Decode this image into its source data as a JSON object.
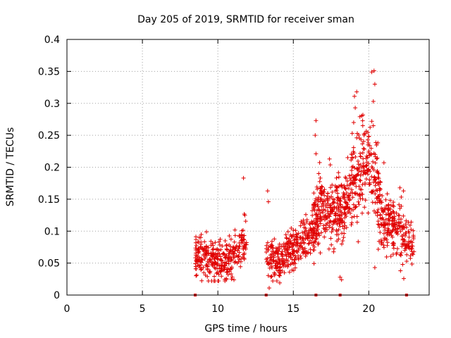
{
  "chart_data": {
    "type": "scatter",
    "title": "Day 205 of 2019, SRMTID for receiver sman",
    "xlabel": "GPS time / hours",
    "ylabel": "SRMTID / TECUs",
    "xlim": [
      0,
      24
    ],
    "ylim": [
      0,
      0.4
    ],
    "xticks": [
      "0",
      "5",
      "10",
      "15",
      "20"
    ],
    "xtick_values": [
      0,
      5,
      10,
      15,
      20
    ],
    "yticks": [
      "0",
      "0.05",
      "0.1",
      "0.15",
      "0.2",
      "0.25",
      "0.3",
      "0.35",
      "0.4"
    ],
    "ytick_values": [
      0,
      0.05,
      0.1,
      0.15,
      0.2,
      0.25,
      0.3,
      0.35,
      0.4
    ],
    "grid": true,
    "marker": "+",
    "color": "#e00000",
    "baseline_markers": [
      8.5,
      13.2,
      16.5,
      18.1,
      22.5
    ],
    "segments": [
      {
        "x_start": 8.5,
        "x_end": 11.9,
        "count": 320,
        "profile": [
          [
            8.5,
            0.065
          ],
          [
            9.5,
            0.058
          ],
          [
            10.5,
            0.05
          ],
          [
            11.2,
            0.07
          ],
          [
            11.9,
            0.085
          ]
        ],
        "spread": 0.022
      },
      {
        "x_start": 13.2,
        "x_end": 16.3,
        "count": 300,
        "profile": [
          [
            13.2,
            0.06
          ],
          [
            14.0,
            0.052
          ],
          [
            15.0,
            0.075
          ],
          [
            15.8,
            0.085
          ],
          [
            16.3,
            0.1
          ]
        ],
        "spread": 0.022
      },
      {
        "x_start": 16.3,
        "x_end": 18.2,
        "count": 260,
        "profile": [
          [
            16.3,
            0.11
          ],
          [
            17.0,
            0.14
          ],
          [
            17.6,
            0.13
          ],
          [
            18.2,
            0.12
          ]
        ],
        "spread": 0.035
      },
      {
        "x_start": 18.2,
        "x_end": 20.8,
        "count": 300,
        "profile": [
          [
            18.2,
            0.12
          ],
          [
            19.0,
            0.17
          ],
          [
            19.6,
            0.2
          ],
          [
            20.2,
            0.2
          ],
          [
            20.8,
            0.13
          ]
        ],
        "spread": 0.045
      },
      {
        "x_start": 20.8,
        "x_end": 23.0,
        "count": 220,
        "profile": [
          [
            20.8,
            0.12
          ],
          [
            21.5,
            0.11
          ],
          [
            22.2,
            0.1
          ],
          [
            23.0,
            0.07
          ]
        ],
        "spread": 0.028
      }
    ],
    "highlight_points": [
      {
        "x": 11.7,
        "y": 0.183
      },
      {
        "x": 13.3,
        "y": 0.163
      },
      {
        "x": 13.35,
        "y": 0.146
      },
      {
        "x": 13.4,
        "y": 0.011
      },
      {
        "x": 16.5,
        "y": 0.273
      },
      {
        "x": 16.45,
        "y": 0.25
      },
      {
        "x": 16.5,
        "y": 0.221
      },
      {
        "x": 17.4,
        "y": 0.213
      },
      {
        "x": 18.6,
        "y": 0.215
      },
      {
        "x": 18.9,
        "y": 0.253
      },
      {
        "x": 19.0,
        "y": 0.27
      },
      {
        "x": 19.1,
        "y": 0.293
      },
      {
        "x": 19.2,
        "y": 0.318
      },
      {
        "x": 19.05,
        "y": 0.311
      },
      {
        "x": 19.6,
        "y": 0.265
      },
      {
        "x": 20.2,
        "y": 0.349
      },
      {
        "x": 20.35,
        "y": 0.351
      },
      {
        "x": 20.4,
        "y": 0.33
      },
      {
        "x": 20.3,
        "y": 0.303
      },
      {
        "x": 20.2,
        "y": 0.272
      },
      {
        "x": 20.3,
        "y": 0.265
      },
      {
        "x": 21.0,
        "y": 0.207
      },
      {
        "x": 22.3,
        "y": 0.163
      },
      {
        "x": 22.1,
        "y": 0.038
      },
      {
        "x": 18.1,
        "y": 0.028
      },
      {
        "x": 20.4,
        "y": 0.043
      },
      {
        "x": 14.1,
        "y": 0.019
      }
    ]
  }
}
